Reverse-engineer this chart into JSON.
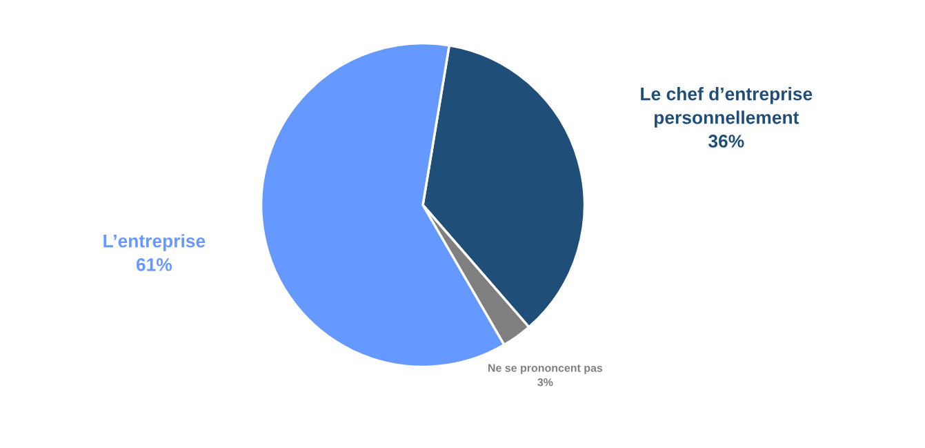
{
  "chart_data": {
    "type": "pie",
    "categories": [
      "Le chef d’entreprise personnellement",
      "Ne se prononcent pas",
      "L’entreprise"
    ],
    "values": [
      36,
      3,
      61
    ],
    "value_labels": [
      "36%",
      "3%",
      "61%"
    ],
    "colors": [
      "#1f4e79",
      "#7f7f7f",
      "#6699ff"
    ]
  }
}
